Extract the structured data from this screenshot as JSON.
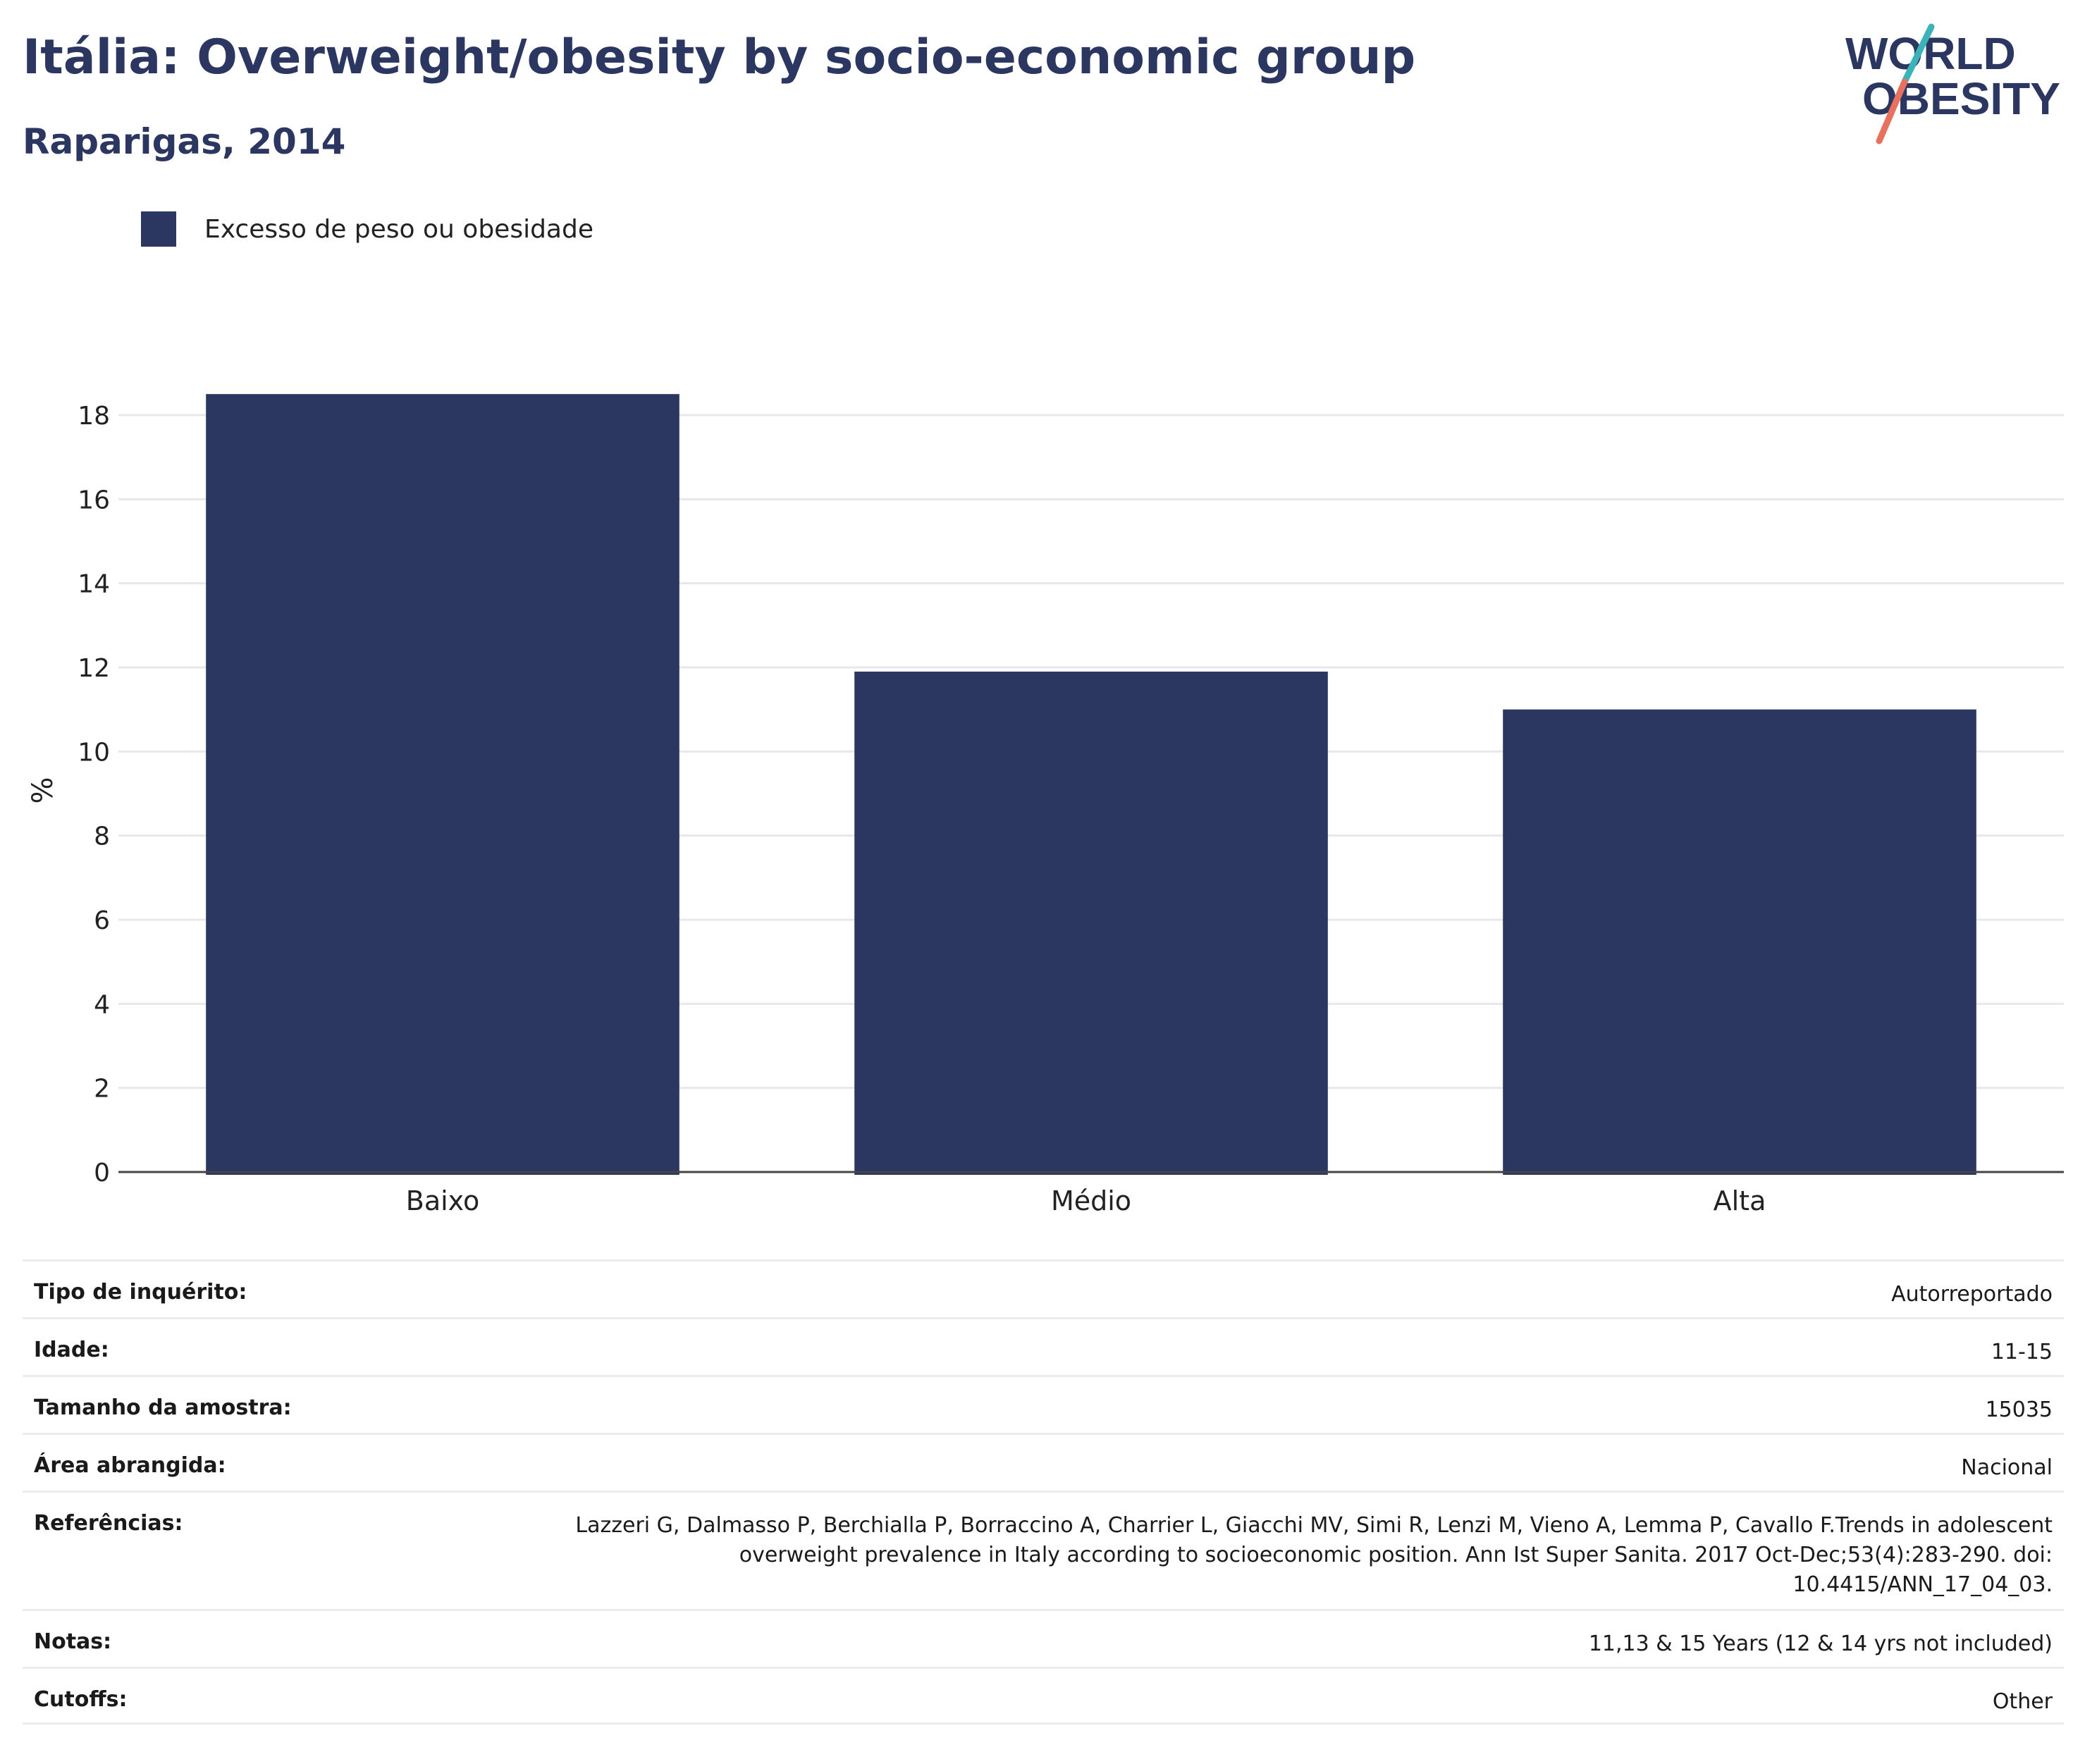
{
  "header": {
    "title": "Itália: Overweight/obesity by socio-economic group",
    "subtitle": "Raparigas, 2014",
    "logo_text_line1": "WORLD",
    "logo_text_line2": "OBESITY"
  },
  "legend": {
    "label": "Excesso de peso ou obesidade"
  },
  "colors": {
    "bar": "#2b3661",
    "title": "#2b3661",
    "logo_teal": "#3bb3b8",
    "logo_coral": "#e8705f"
  },
  "chart_data": {
    "type": "bar",
    "categories": [
      "Baixo",
      "Médio",
      "Alta"
    ],
    "series": [
      {
        "name": "Excesso de peso ou obesidade",
        "values": [
          18.5,
          11.9,
          11.0
        ]
      }
    ],
    "ylabel": "%",
    "ylim": [
      0,
      19
    ],
    "yticks": [
      0,
      2,
      4,
      6,
      8,
      10,
      12,
      14,
      16,
      18
    ],
    "grid": true
  },
  "info": [
    {
      "label": "Tipo de inquérito:",
      "value": "Autorreportado"
    },
    {
      "label": "Idade:",
      "value": "11-15"
    },
    {
      "label": "Tamanho da amostra:",
      "value": "15035"
    },
    {
      "label": "Área abrangida:",
      "value": "Nacional"
    },
    {
      "label": "Referências:",
      "value": "Lazzeri G, Dalmasso P, Berchialla P, Borraccino A, Charrier L, Giacchi MV, Simi R, Lenzi M, Vieno A, Lemma P, Cavallo F.Trends in adolescent overweight prevalence in Italy according to socioeconomic position. Ann Ist Super Sanita. 2017 Oct-Dec;53(4):283-290. doi: 10.4415/ANN_17_04_03."
    },
    {
      "label": "Notas:",
      "value": "11,13 & 15 Years (12 & 14 yrs not included)"
    },
    {
      "label": "Cutoffs:",
      "value": "Other"
    }
  ]
}
